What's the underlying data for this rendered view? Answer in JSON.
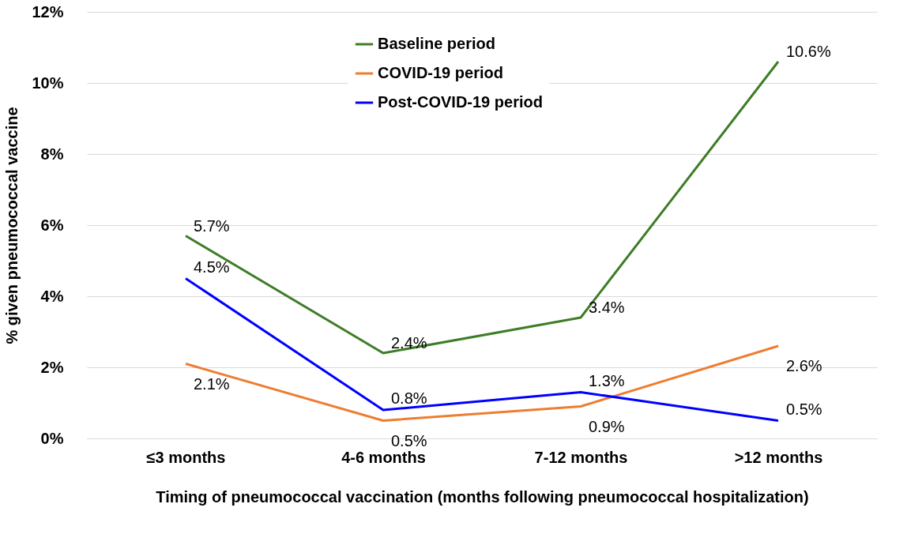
{
  "chart_data": {
    "type": "line",
    "xlabel": "Timing of pneumococcal vaccination (months following pneumococcal hospitalization)",
    "ylabel": "% given pneumococcal vaccine",
    "categories": [
      "≤3 months",
      "4-6 months",
      "7-12 months",
      ">12 months"
    ],
    "series": [
      {
        "name": "Baseline period",
        "color": "#3e7d27",
        "values": [
          5.7,
          2.4,
          3.4,
          10.6
        ],
        "value_labels": [
          "5.7%",
          "2.4%",
          "3.4%",
          "10.6%"
        ]
      },
      {
        "name": "COVID-19 period",
        "color": "#ed7d31",
        "values": [
          2.1,
          0.5,
          0.9,
          2.6
        ],
        "value_labels": [
          "2.1%",
          "0.5%",
          "0.9%",
          "2.6%"
        ]
      },
      {
        "name": "Post-COVID-19 period",
        "color": "#0000ff",
        "values": [
          4.5,
          0.8,
          1.3,
          0.5
        ],
        "value_labels": [
          "4.5%",
          "0.8%",
          "1.3%",
          "0.5%"
        ]
      }
    ],
    "ylim": [
      0,
      12
    ],
    "yticks": [
      {
        "value": 0,
        "label": "0%"
      },
      {
        "value": 2,
        "label": "2%"
      },
      {
        "value": 4,
        "label": "4%"
      },
      {
        "value": 6,
        "label": "6%"
      },
      {
        "value": 8,
        "label": "8%"
      },
      {
        "value": 10,
        "label": "10%"
      },
      {
        "value": 12,
        "label": "12%"
      }
    ],
    "grid": "y",
    "legend": "top",
    "marker": "none",
    "line_style": "solid"
  }
}
